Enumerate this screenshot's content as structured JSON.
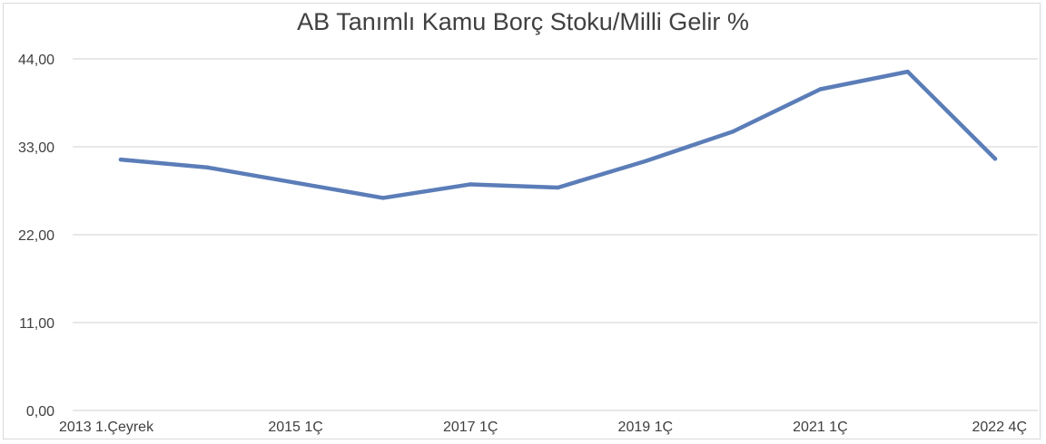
{
  "chart_data": {
    "type": "line",
    "title": "AB Tanımlı Kamu Borç Stoku/Milli Gelir %",
    "xlabel": "",
    "ylabel": "",
    "ylim": [
      0,
      44
    ],
    "yticks": [
      "0,00",
      "11,00",
      "22,00",
      "33,00",
      "44,00"
    ],
    "ytick_values": [
      0,
      11,
      22,
      33,
      44
    ],
    "x_tick_labels": [
      {
        "index": 0,
        "label": "2013 1.Çeyrek"
      },
      {
        "index": 2,
        "label": "2015 1Ç"
      },
      {
        "index": 4,
        "label": "2017 1Ç"
      },
      {
        "index": 6,
        "label": "2019 1Ç"
      },
      {
        "index": 8,
        "label": "2021 1Ç"
      },
      {
        "index": 10,
        "label": "2022 4Ç"
      }
    ],
    "grid": true,
    "legend": "none",
    "series": [
      {
        "color": "#5b7db8",
        "values": [
          31.4,
          30.4,
          28.5,
          26.6,
          28.3,
          27.9,
          31.2,
          34.9,
          40.2,
          42.4,
          31.5
        ]
      }
    ]
  }
}
